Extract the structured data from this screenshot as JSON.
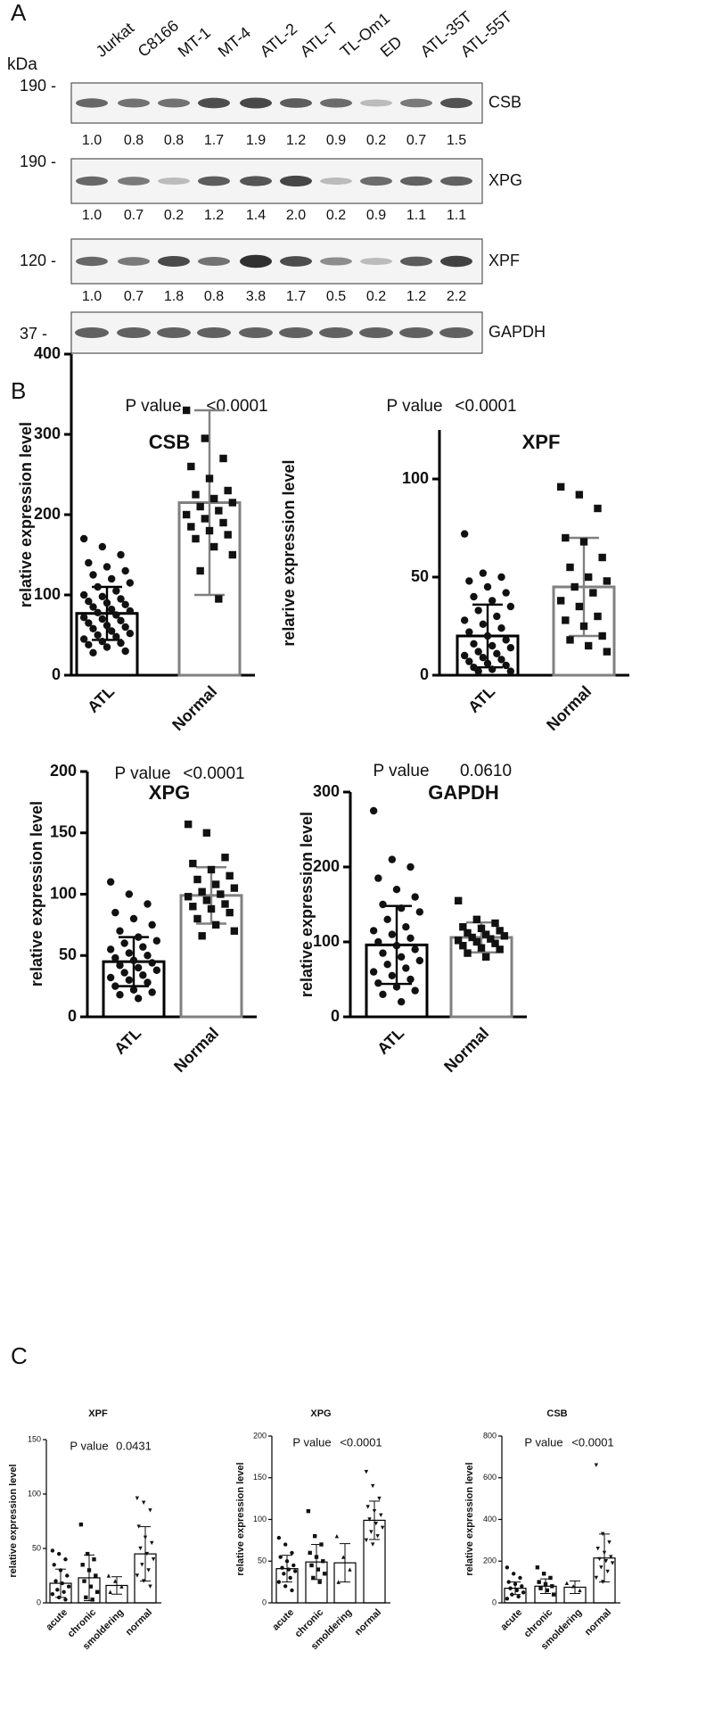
{
  "panel_labels": [
    "A",
    "B",
    "C"
  ],
  "panel_a": {
    "unit": "kDa",
    "lanes": [
      "Jurkat",
      "C8166",
      "MT-1",
      "MT-4",
      "ATL-2",
      "ATL-T",
      "TL-Om1",
      "ED",
      "ATL-35T",
      "ATL-55T"
    ],
    "blots": [
      {
        "name": "CSB",
        "marker": "190 -",
        "values": [
          1.0,
          0.8,
          0.8,
          1.7,
          1.9,
          1.2,
          0.9,
          0.2,
          0.7,
          1.5
        ],
        "value_labels": [
          "1.0",
          "0.8",
          "0.8",
          "1.7",
          "1.9",
          "1.2",
          "0.9",
          "0.2",
          "0.7",
          "1.5"
        ]
      },
      {
        "name": "XPG",
        "marker": "190 -",
        "values": [
          1.0,
          0.7,
          0.2,
          1.2,
          1.4,
          2.0,
          0.2,
          0.9,
          1.1,
          1.1
        ],
        "value_labels": [
          "1.0",
          "0.7",
          "0.2",
          "1.2",
          "1.4",
          "2.0",
          "0.2",
          "0.9",
          "1.1",
          "1.1"
        ]
      },
      {
        "name": "XPF",
        "marker": "120 -",
        "values": [
          1.0,
          0.7,
          1.8,
          0.8,
          3.8,
          1.7,
          0.5,
          0.2,
          1.2,
          2.2
        ],
        "value_labels": [
          "1.0",
          "0.7",
          "1.8",
          "0.8",
          "3.8",
          "1.7",
          "0.5",
          "0.2",
          "1.2",
          "2.2"
        ]
      },
      {
        "name": "GAPDH",
        "marker": "37 -"
      }
    ]
  },
  "chart_data": [
    {
      "type": "bar",
      "title": "CSB",
      "p_label": "P value",
      "p_value": "<0.0001",
      "ylabel": "relative expression level",
      "categories": [
        "ATL",
        "Normal"
      ],
      "colors": [
        "#000000",
        "#808080"
      ],
      "values": [
        77,
        215
      ],
      "errors": [
        33,
        115
      ],
      "ylim": [
        0,
        400
      ],
      "yticks": [
        0,
        100,
        200,
        300,
        400
      ],
      "points": [
        [
          170,
          160,
          150,
          140,
          135,
          130,
          125,
          120,
          115,
          110,
          105,
          100,
          98,
          95,
          92,
          90,
          88,
          85,
          82,
          80,
          78,
          75,
          72,
          70,
          68,
          65,
          62,
          60,
          58,
          55,
          52,
          50,
          48,
          45,
          42,
          40,
          38,
          35,
          30,
          28
        ],
        [
          330,
          295,
          270,
          260,
          245,
          230,
          225,
          220,
          215,
          210,
          205,
          200,
          195,
          190,
          185,
          180,
          175,
          170,
          160,
          150,
          130,
          95
        ]
      ]
    },
    {
      "type": "bar",
      "title": "XPF",
      "p_label": "P value",
      "p_value": "<0.0001",
      "ylabel": "relarive expression level",
      "categories": [
        "ATL",
        "Normal"
      ],
      "colors": [
        "#000000",
        "#808080"
      ],
      "values": [
        20,
        45
      ],
      "errors": [
        16,
        25
      ],
      "ylim": [
        0,
        125
      ],
      "yticks": [
        0,
        50,
        100
      ],
      "points": [
        [
          72,
          52,
          50,
          48,
          45,
          42,
          40,
          38,
          35,
          33,
          30,
          28,
          26,
          24,
          22,
          20,
          18,
          16,
          15,
          14,
          12,
          11,
          10,
          9,
          8,
          7,
          6,
          5,
          4,
          3,
          2,
          2
        ],
        [
          96,
          92,
          85,
          70,
          68,
          60,
          55,
          50,
          48,
          45,
          42,
          38,
          35,
          30,
          28,
          25,
          20,
          18,
          15,
          12
        ]
      ]
    },
    {
      "type": "bar",
      "title": "XPG",
      "p_label": "P value",
      "p_value": "<0.0001",
      "ylabel": "relative expression level",
      "categories": [
        "ATL",
        "Normal"
      ],
      "colors": [
        "#000000",
        "#808080"
      ],
      "values": [
        45,
        99
      ],
      "errors": [
        20,
        23
      ],
      "ylim": [
        0,
        200
      ],
      "yticks": [
        0,
        50,
        100,
        150,
        200
      ],
      "points": [
        [
          110,
          100,
          92,
          85,
          80,
          75,
          70,
          65,
          62,
          60,
          57,
          55,
          52,
          50,
          48,
          46,
          44,
          42,
          40,
          38,
          36,
          34,
          32,
          30,
          28,
          25,
          22,
          20,
          18,
          15
        ],
        [
          157,
          150,
          130,
          125,
          120,
          115,
          112,
          108,
          105,
          102,
          100,
          98,
          95,
          92,
          90,
          88,
          85,
          80,
          75,
          70,
          66
        ]
      ]
    },
    {
      "type": "bar",
      "title": "GAPDH",
      "p_label": "P value",
      "p_value": "0.0610",
      "ylabel": "relative expression level",
      "categories": [
        "ATL",
        "Normal"
      ],
      "colors": [
        "#000000",
        "#808080"
      ],
      "values": [
        96,
        106
      ],
      "errors": [
        52,
        20
      ],
      "ylim": [
        0,
        300
      ],
      "yticks": [
        0,
        100,
        200,
        300
      ],
      "points": [
        [
          275,
          210,
          200,
          185,
          170,
          160,
          150,
          145,
          140,
          130,
          120,
          115,
          110,
          105,
          100,
          95,
          90,
          85,
          80,
          75,
          70,
          65,
          60,
          55,
          50,
          45,
          40,
          35,
          30,
          20
        ],
        [
          155,
          130,
          125,
          120,
          118,
          115,
          112,
          110,
          108,
          106,
          104,
          102,
          100,
          98,
          95,
          92,
          90,
          85,
          80
        ]
      ]
    },
    {
      "type": "bar",
      "title": "XPF",
      "p_label": "P value",
      "p_value": "0.0431",
      "ylabel": "relative expression level",
      "categories": [
        "acute",
        "chronic",
        "smoldering",
        "normal"
      ],
      "colors": [
        "#000000",
        "#000000",
        "#000000",
        "#000000"
      ],
      "values": [
        18,
        23,
        16,
        45
      ],
      "errors": [
        13,
        21,
        8,
        25
      ],
      "ylim": [
        0,
        150
      ],
      "yticks": [
        0,
        50,
        100,
        150
      ],
      "points": [
        [
          48,
          45,
          40,
          35,
          30,
          25,
          20,
          18,
          15,
          12,
          10,
          8,
          5,
          3
        ],
        [
          72,
          45,
          40,
          35,
          30,
          25,
          20,
          15,
          10,
          5,
          3
        ],
        [
          25,
          20,
          15,
          10
        ],
        [
          96,
          92,
          85,
          70,
          60,
          55,
          50,
          45,
          40,
          35,
          30,
          25,
          20,
          15
        ]
      ]
    },
    {
      "type": "bar",
      "title": "XPG",
      "p_label": "P value",
      "p_value": "<0.0001",
      "ylabel": "relative expression level",
      "categories": [
        "acute",
        "chronic",
        "smoldering",
        "normal"
      ],
      "colors": [
        "#000000",
        "#000000",
        "#000000",
        "#000000"
      ],
      "values": [
        41,
        49,
        48,
        99
      ],
      "errors": [
        16,
        21,
        23,
        23
      ],
      "ylim": [
        0,
        200
      ],
      "yticks": [
        0,
        50,
        100,
        150,
        200
      ],
      "points": [
        [
          78,
          70,
          60,
          55,
          50,
          45,
          42,
          40,
          38,
          35,
          30,
          25,
          20,
          15
        ],
        [
          110,
          80,
          70,
          60,
          55,
          50,
          45,
          40,
          35,
          30,
          25
        ],
        [
          80,
          55,
          40,
          25
        ],
        [
          157,
          140,
          125,
          115,
          110,
          105,
          100,
          95,
          90,
          85,
          80,
          75,
          70
        ]
      ]
    },
    {
      "type": "bar",
      "title": "CSB",
      "p_label": "P value",
      "p_value": "<0.0001",
      "ylabel": "relative expression level",
      "categories": [
        "acute",
        "chronic",
        "smoldering",
        "normal"
      ],
      "colors": [
        "#000000",
        "#000000",
        "#000000",
        "#000000"
      ],
      "values": [
        70,
        80,
        75,
        215
      ],
      "errors": [
        30,
        35,
        30,
        115
      ],
      "ylim": [
        0,
        800
      ],
      "yticks": [
        0,
        200,
        400,
        600,
        800
      ],
      "points": [
        [
          170,
          140,
          120,
          100,
          90,
          80,
          70,
          60,
          50,
          40,
          30,
          20
        ],
        [
          170,
          140,
          120,
          100,
          90,
          80,
          70,
          60,
          40
        ],
        [
          95,
          80,
          60
        ],
        [
          660,
          330,
          290,
          260,
          240,
          220,
          210,
          200,
          190,
          170,
          150,
          120,
          100
        ]
      ]
    }
  ]
}
